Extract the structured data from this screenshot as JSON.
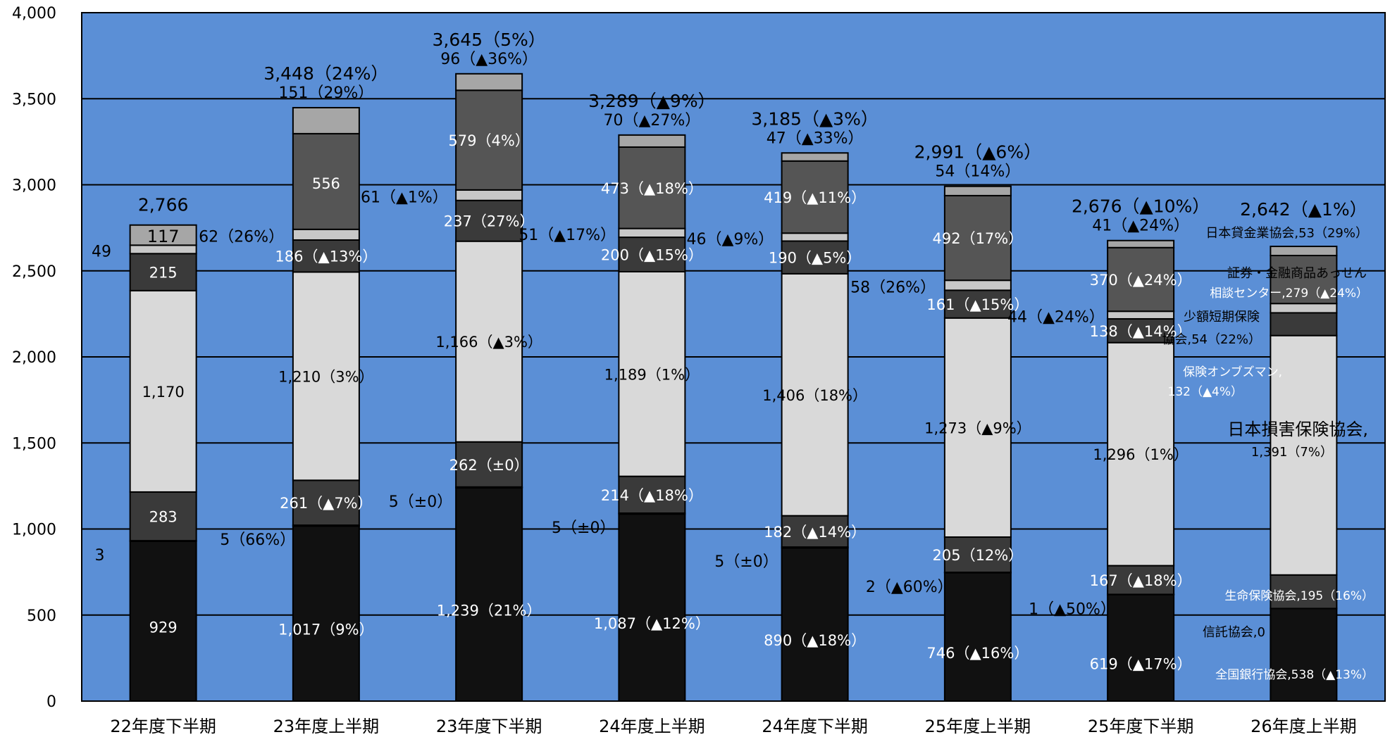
{
  "chart_data": {
    "type": "bar",
    "stacked": true,
    "ylim": [
      0,
      4000
    ],
    "yticks": [
      "0",
      "500",
      "1,000",
      "1,500",
      "2,000",
      "2,500",
      "3,000",
      "3,500",
      "4,000"
    ],
    "categories": [
      "22年度下半期",
      "23年度上半期",
      "23年度下半期",
      "24年度上半期",
      "24年度下半期",
      "25年度上半期",
      "25年度下半期",
      "26年度上半期"
    ],
    "totals": [
      "2,766",
      "3,448（24%）",
      "3,645（5%）",
      "3,289（▲9%）",
      "3,185（▲3%）",
      "2,991（▲6%）",
      "2,676（▲10%）",
      "2,642（▲1%）"
    ],
    "series": [
      {
        "name": "全国銀行協会",
        "color": "#111111",
        "values": [
          929,
          1017,
          1239,
          1087,
          890,
          746,
          619,
          538
        ],
        "labels": [
          "929",
          "1,017（9%）",
          "1,239（21%）",
          "1,087（▲12%）",
          "890（▲18%）",
          "746（▲16%）",
          "619（▲17%）",
          ""
        ]
      },
      {
        "name": "信託協会",
        "color": "#111111",
        "values": [
          3,
          5,
          5,
          5,
          5,
          2,
          1,
          0
        ],
        "labels": [
          "3",
          "5（66%）",
          "5（±0）",
          "5（±0）",
          "5（±0）",
          "2（▲60%）",
          "1（▲50%）",
          ""
        ]
      },
      {
        "name": "生命保険協会",
        "color": "#3a3a3a",
        "values": [
          283,
          261,
          262,
          214,
          182,
          205,
          167,
          195
        ],
        "labels": [
          "283",
          "261（▲7%）",
          "262（±0）",
          "214（▲18%）",
          "182（▲14%）",
          "205（12%）",
          "167（▲18%）",
          ""
        ]
      },
      {
        "name": "日本損害保険協会",
        "color": "#d9d9d9",
        "values": [
          1170,
          1210,
          1166,
          1189,
          1406,
          1273,
          1296,
          1391
        ],
        "labels": [
          "1,170",
          "1,210（3%）",
          "1,166（▲3%）",
          "1,189（1%）",
          "1,406（18%）",
          "1,273（▲9%）",
          "1,296（1%）",
          ""
        ]
      },
      {
        "name": "保険オンブズマン",
        "color": "#3a3a3a",
        "values": [
          215,
          186,
          237,
          200,
          190,
          161,
          138,
          132
        ],
        "labels": [
          "215",
          "186（▲13%）",
          "237（27%）",
          "200（▲15%）",
          "190（▲5%）",
          "161（▲15%）",
          "138（▲14%）",
          ""
        ]
      },
      {
        "name": "少額短期保険協会",
        "color": "#c8c8c8",
        "values": [
          49,
          62,
          61,
          51,
          46,
          58,
          44,
          54
        ],
        "labels": [
          "49",
          "62（26%）",
          "61（▲1%）",
          "51（▲17%）",
          "46（▲9%）",
          "58（26%）",
          "44（▲24%）",
          ""
        ]
      },
      {
        "name": "証券・金融商品あっせん相談センター",
        "color": "#555555",
        "values": [
          0,
          556,
          579,
          473,
          419,
          492,
          370,
          279
        ],
        "labels": [
          "",
          "556",
          "579（4%）",
          "473（▲18%）",
          "419（▲11%）",
          "492（17%）",
          "370（▲24%）",
          ""
        ]
      },
      {
        "name": "日本貸金業協会",
        "color": "#a6a6a6",
        "values": [
          117,
          151,
          96,
          70,
          47,
          54,
          41,
          53
        ],
        "labels": [
          "117",
          "151（29%）",
          "96（▲36%）",
          "70（▲27%）",
          "47（▲33%）",
          "54（14%）",
          "41（▲24%）",
          ""
        ]
      }
    ],
    "legend_labels": {
      "kashikin": "日本貸金業協会,53（29%）",
      "shoken_1": "証券・金融商品あっせん",
      "shoken_2": "相談センター,279（▲24%）",
      "shogaku_1": "少額短期保険",
      "shogaku_2": "協会,54（22%）",
      "ombuds_1": "保険オンブズマン,",
      "ombuds_2": "132（▲4%）",
      "songai_1": "日本損害保険協会,",
      "songai_2": "1,391（7%）",
      "seimei": "生命保険協会,195（16%）",
      "shintaku": "信託協会,0",
      "zenginkyo": "全国銀行協会,538（▲13%）"
    },
    "colors": {
      "plot_bg": "#5b8fd6",
      "grid": "#000000"
    }
  }
}
